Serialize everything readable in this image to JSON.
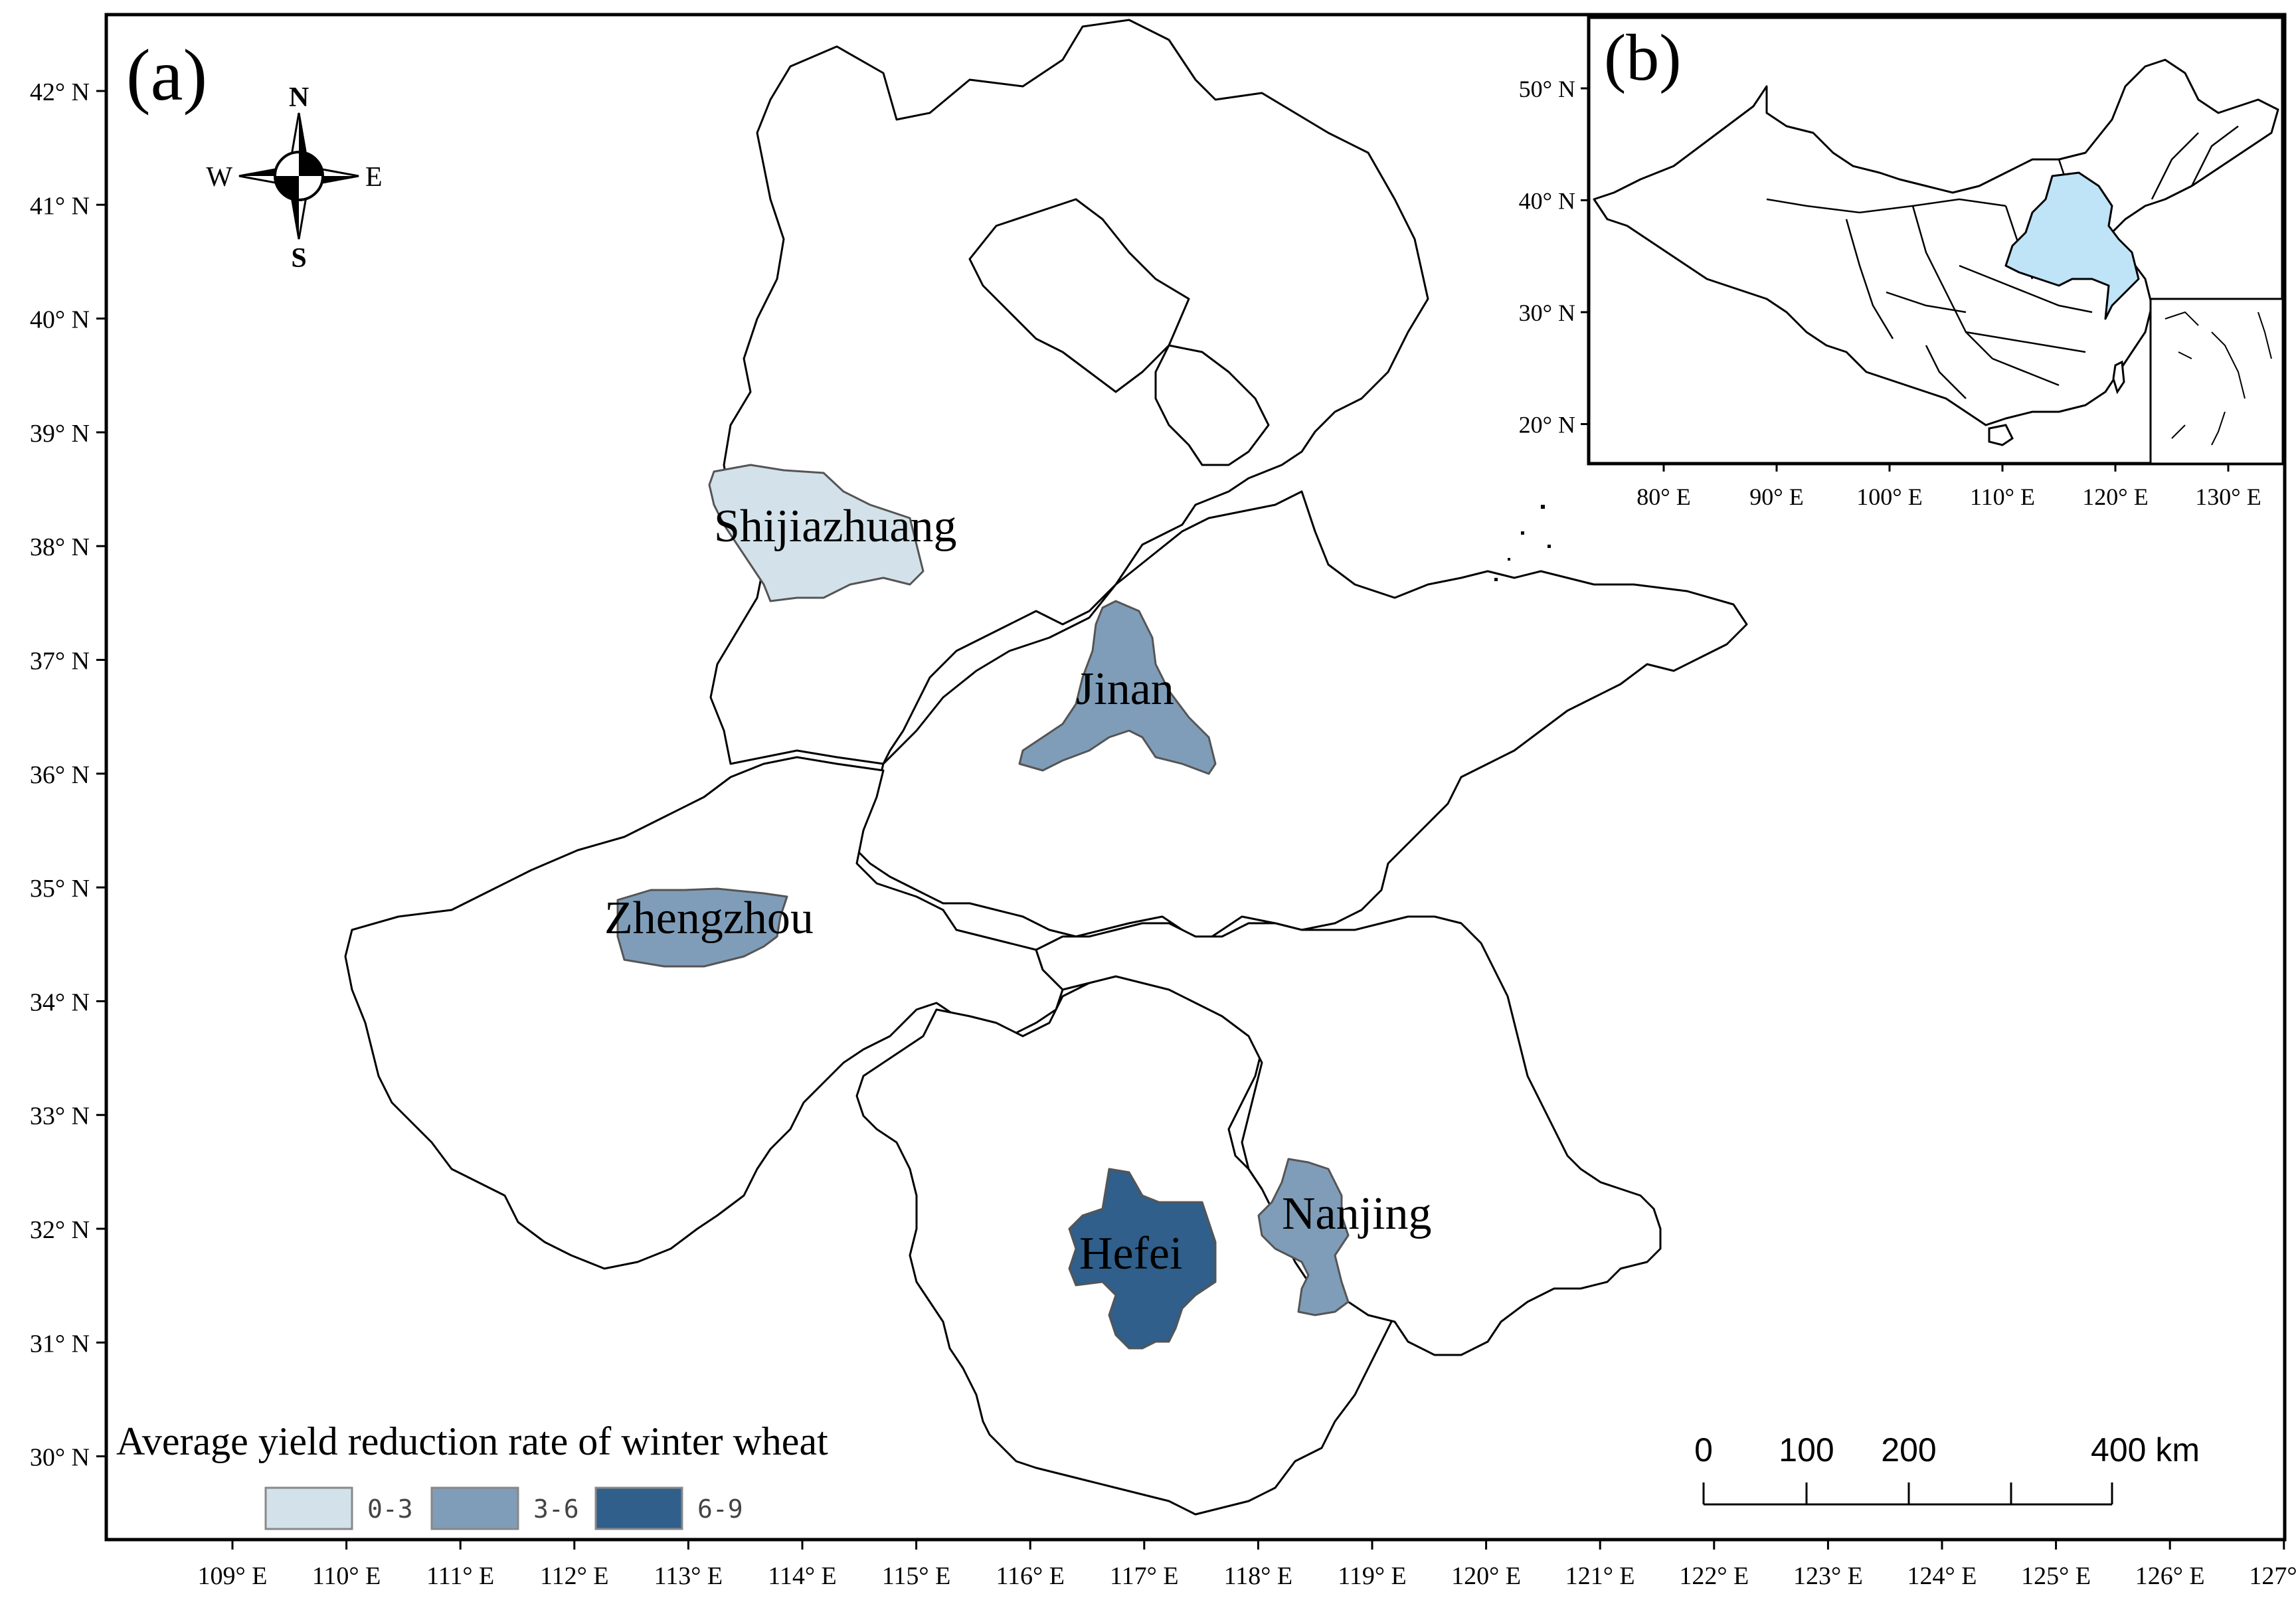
{
  "main_map": {
    "panel_label": "(a)",
    "lat_ticks": [
      "42° N",
      "41° N",
      "40° N",
      "39° N",
      "38° N",
      "37° N",
      "36° N",
      "35° N",
      "34° N",
      "33° N",
      "32° N",
      "31° N",
      "30° N"
    ],
    "lon_ticks": [
      "109° E",
      "110° E",
      "111° E",
      "112° E",
      "113° E",
      "114° E",
      "115° E",
      "116° E",
      "117° E",
      "118° E",
      "119° E",
      "120° E",
      "121° E",
      "122° E",
      "123° E",
      "124° E",
      "125° E",
      "126° E",
      "127° E"
    ],
    "cities": [
      {
        "name": "Shijiazhuang",
        "class": "0-3"
      },
      {
        "name": "Jinan",
        "class": "3-6"
      },
      {
        "name": "Zhengzhou",
        "class": "3-6"
      },
      {
        "name": "Hefei",
        "class": "6-9"
      },
      {
        "name": "Nanjing",
        "class": "3-6"
      }
    ]
  },
  "compass": {
    "n": "N",
    "s": "S",
    "e": "E",
    "w": "W"
  },
  "legend": {
    "title": "Average yield reduction rate of winter wheat",
    "items": [
      {
        "label": "0-3",
        "color": "#d3e2ea"
      },
      {
        "label": "3-6",
        "color": "#7f9db8"
      },
      {
        "label": "6-9",
        "color": "#2f5f8a"
      }
    ]
  },
  "scale_bar": {
    "labels": [
      "0",
      "100",
      "200",
      "400 km"
    ]
  },
  "inset": {
    "panel_label": "(b)",
    "lat_ticks": [
      "50° N",
      "40° N",
      "30° N",
      "20° N"
    ],
    "lon_ticks": [
      "80° E",
      "90° E",
      "100° E",
      "110° E",
      "120° E",
      "130° E"
    ],
    "highlight_color": "#bfe3f7"
  }
}
